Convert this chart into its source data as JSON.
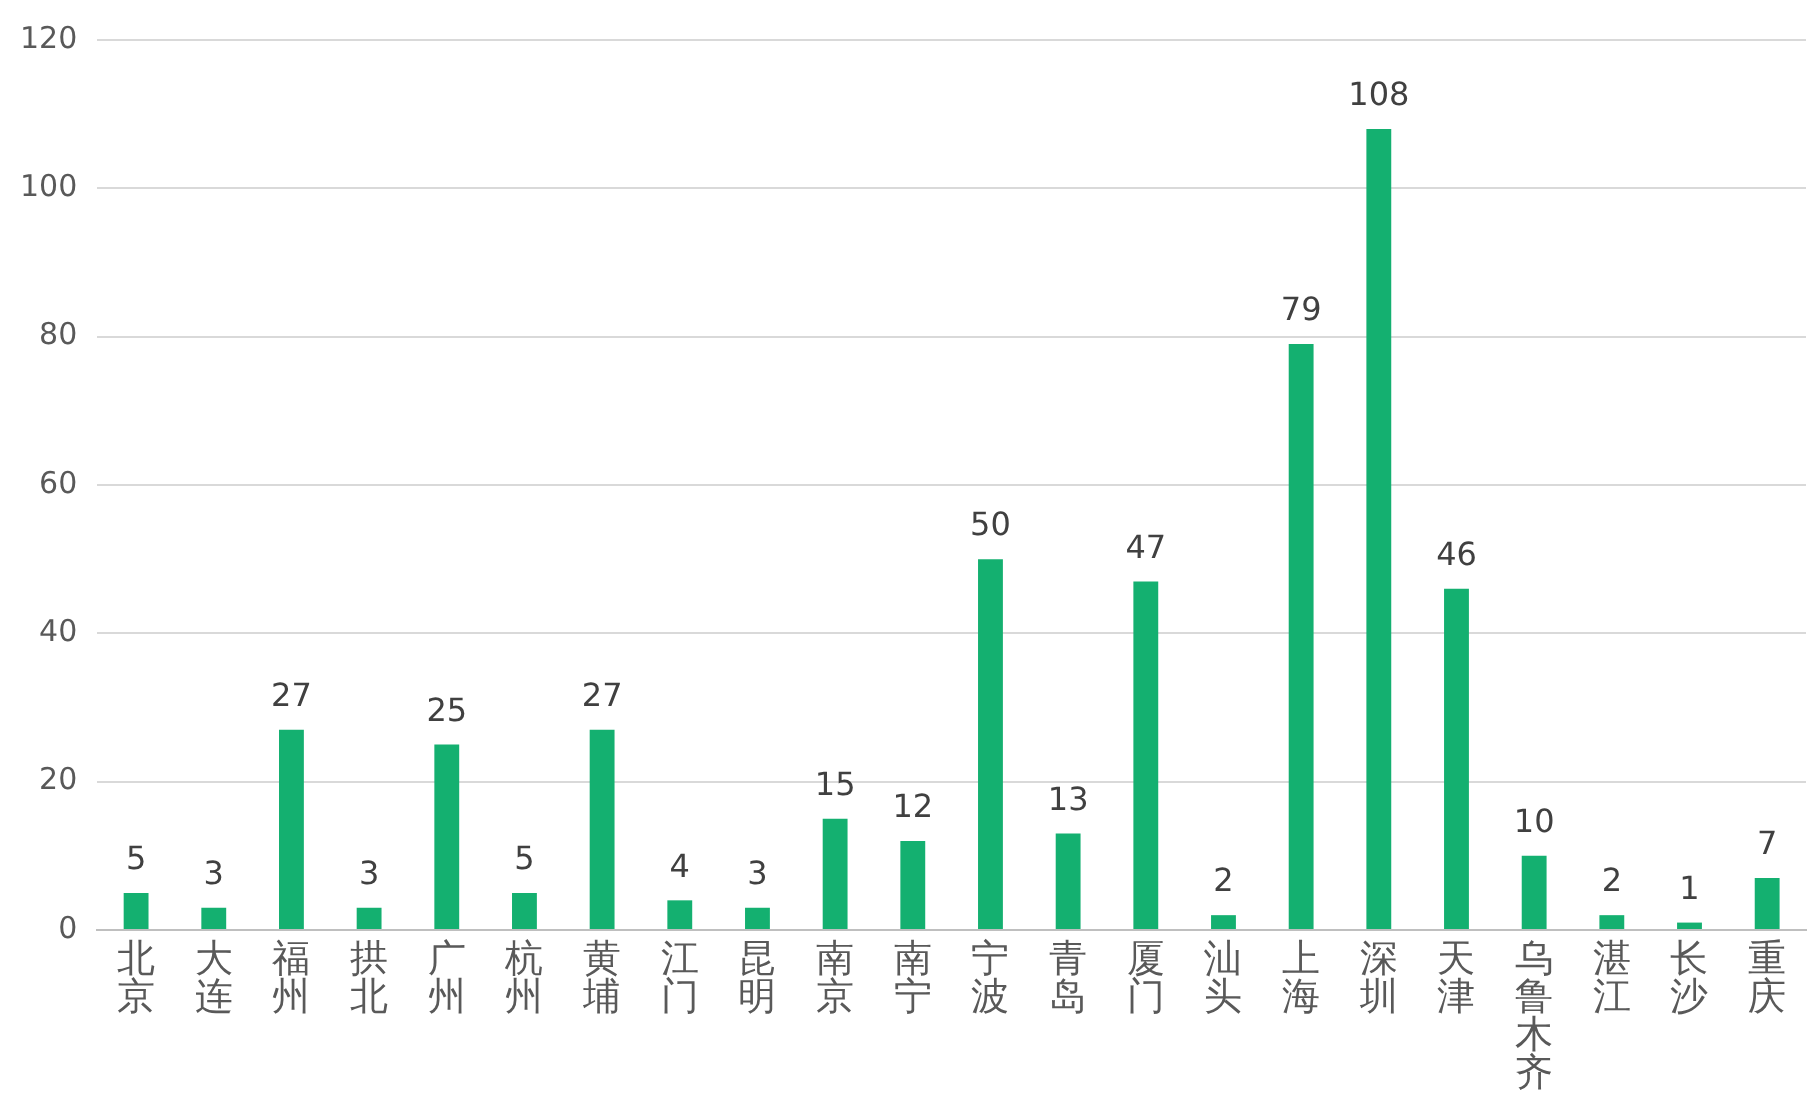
{
  "chart_data": {
    "type": "bar",
    "categories": [
      "北京",
      "大连",
      "福州",
      "拱北",
      "广州",
      "杭州",
      "黄埔",
      "江门",
      "昆明",
      "南京",
      "南宁",
      "宁波",
      "青岛",
      "厦门",
      "汕头",
      "上海",
      "深圳",
      "天津",
      "乌鲁木齐",
      "湛江",
      "长沙",
      "重庆"
    ],
    "values": [
      5,
      3,
      27,
      3,
      25,
      5,
      27,
      4,
      3,
      15,
      12,
      50,
      13,
      47,
      2,
      79,
      108,
      46,
      10,
      2,
      1,
      7
    ],
    "color": "#14b070",
    "ylim": [
      0,
      120
    ],
    "yticks": [
      0,
      20,
      40,
      60,
      80,
      100,
      120
    ],
    "grid": "y",
    "legend": false,
    "data_labels": true
  }
}
